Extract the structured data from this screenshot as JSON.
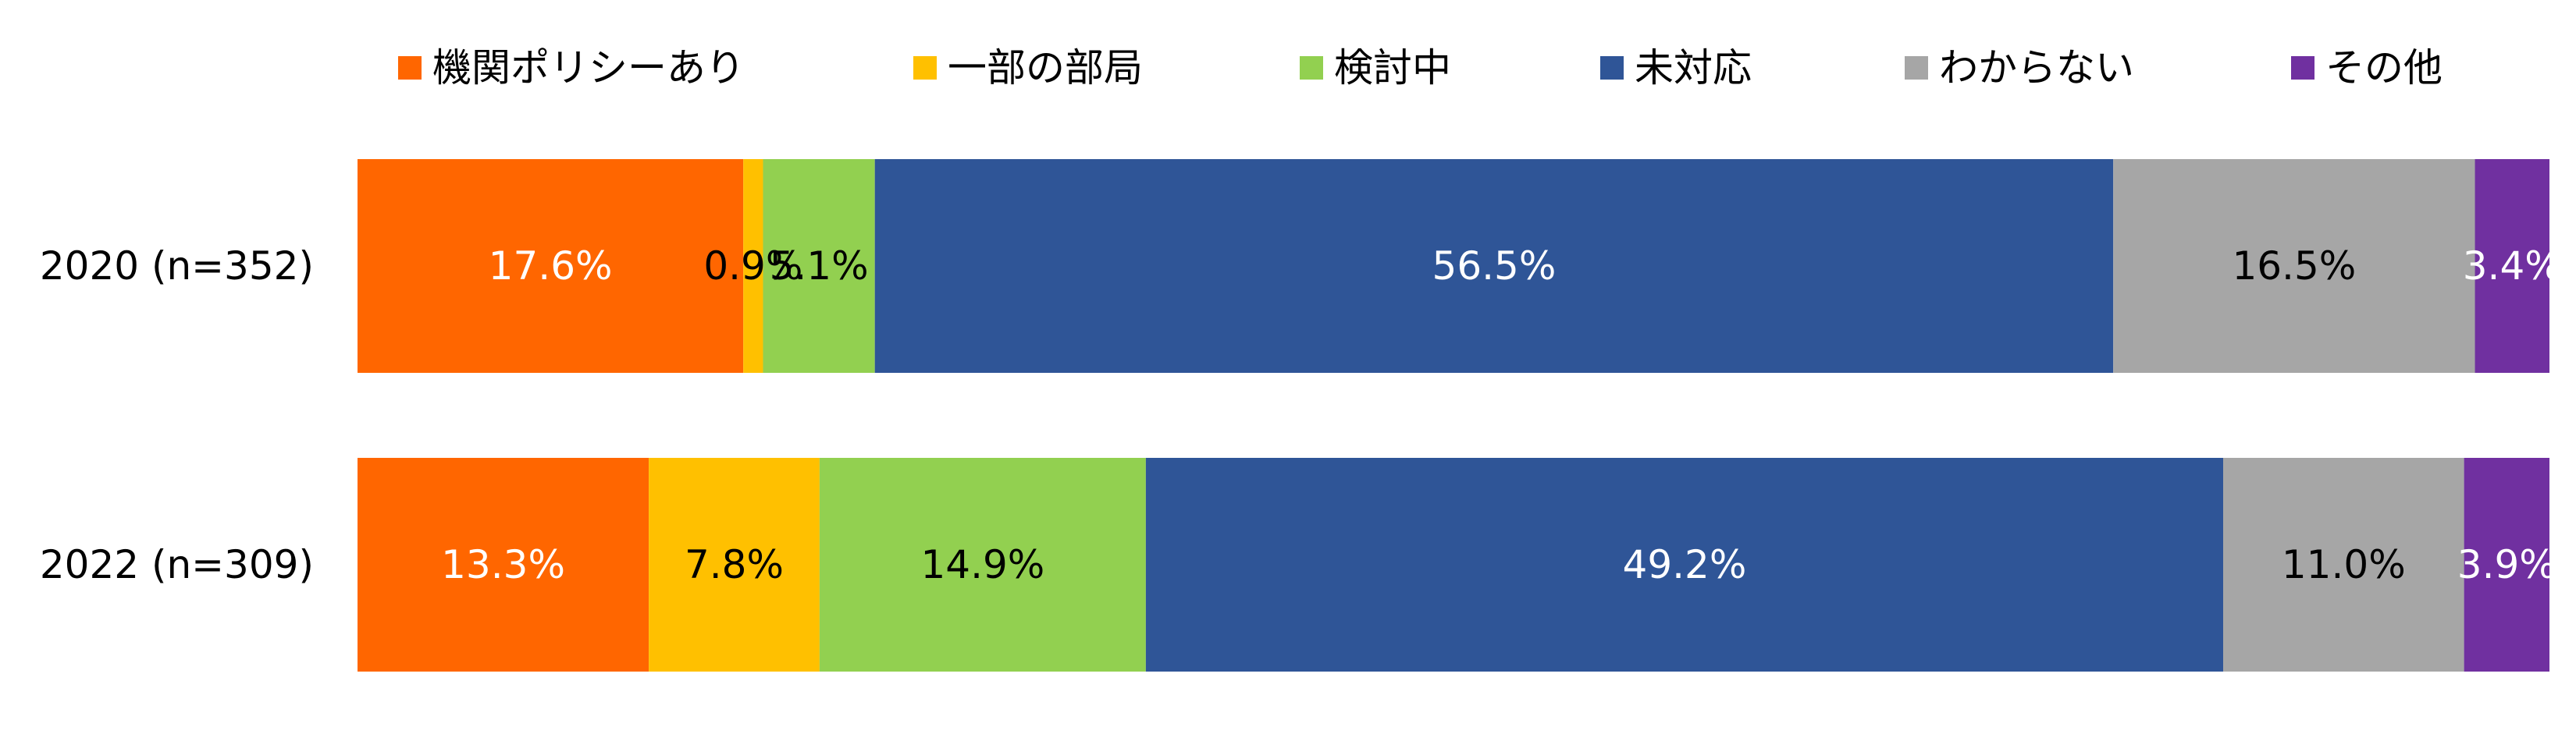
{
  "chart_data": {
    "type": "bar",
    "orientation": "horizontal",
    "stacked": "percent",
    "categories": [
      "2020 (n=352)",
      "2022 (n=309)"
    ],
    "series": [
      {
        "name": "機関ポリシーあり",
        "color": "#ff6600",
        "label_color": "#ffffff",
        "values": [
          17.6,
          13.3
        ],
        "labels": [
          "17.6%",
          "13.3%"
        ]
      },
      {
        "name": "一部の部局",
        "color": "#ffc000",
        "label_color": "#000000",
        "values": [
          0.9,
          7.8
        ],
        "labels": [
          "0.9%",
          "7.8%"
        ]
      },
      {
        "name": "検討中",
        "color": "#92d050",
        "label_color": "#000000",
        "values": [
          5.1,
          14.9
        ],
        "labels": [
          "5.1%",
          "14.9%"
        ]
      },
      {
        "name": "未対応",
        "color": "#2f5597",
        "label_color": "#ffffff",
        "values": [
          56.5,
          49.2
        ],
        "labels": [
          "56.5%",
          "49.2%"
        ]
      },
      {
        "name": "わからない",
        "color": "#a6a6a6",
        "label_color": "#000000",
        "values": [
          16.5,
          11.0
        ],
        "labels": [
          "16.5%",
          "11.0%"
        ]
      },
      {
        "name": "その他",
        "color": "#7030a0",
        "label_color": "#ffffff",
        "values": [
          3.4,
          3.9
        ],
        "labels": [
          "3.4%",
          "3.9%"
        ]
      }
    ],
    "legend_position": "top",
    "grid": false
  }
}
